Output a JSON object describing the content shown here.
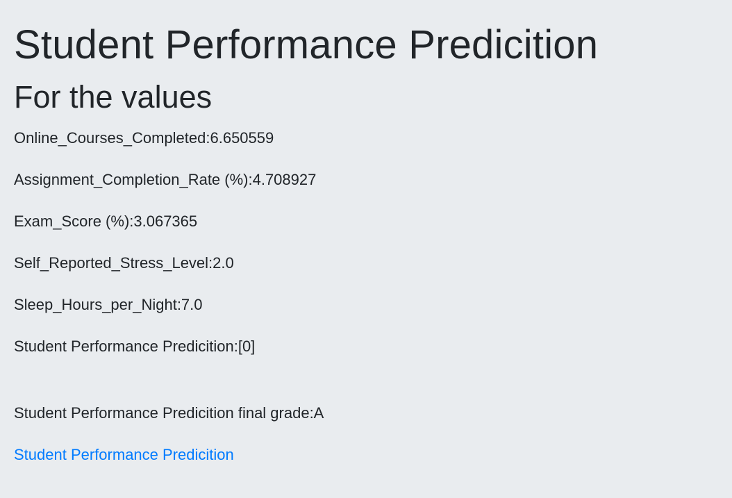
{
  "page": {
    "title": "Student Performance Predicition",
    "subtitle": "For the values"
  },
  "values": [
    {
      "label": "Online_Courses_Completed:6.650559"
    },
    {
      "label": "Assignment_Completion_Rate (%):4.708927"
    },
    {
      "label": "Exam_Score (%):3.067365"
    },
    {
      "label": "Self_Reported_Stress_Level:2.0"
    },
    {
      "label": "Sleep_Hours_per_Night:7.0"
    }
  ],
  "prediction": {
    "text": "Student Performance Predicition:[0]"
  },
  "grade": {
    "text": "Student Performance Predicition final grade:A"
  },
  "link": {
    "text": "Student Performance Predicition"
  }
}
